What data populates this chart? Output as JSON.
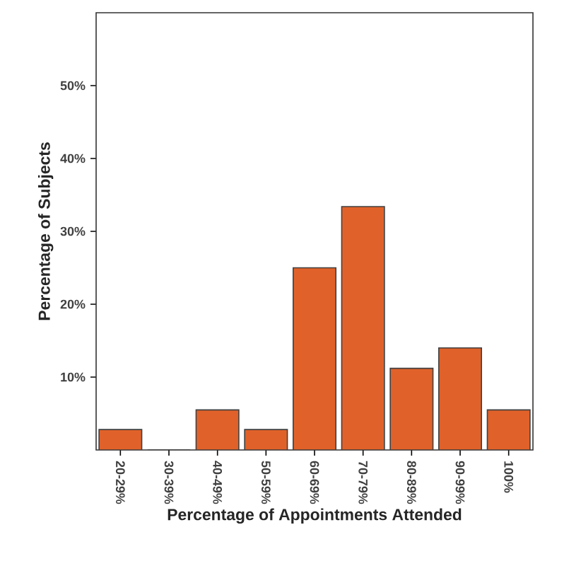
{
  "chart_data": {
    "type": "bar",
    "xlabel": "Percentage of Appointments Attended",
    "ylabel": "Percentage of Subjects",
    "categories": [
      "20-29%",
      "30-39%",
      "40-49%",
      "50-59%",
      "60-69%",
      "70-79%",
      "80-89%",
      "90-99%",
      "100%"
    ],
    "values": [
      2.8,
      0,
      5.5,
      2.8,
      25.0,
      33.4,
      11.2,
      14.0,
      5.5
    ],
    "color": "#e0622a",
    "ylim": [
      0,
      60
    ],
    "yticks": [
      {
        "value": 10,
        "label": "10%"
      },
      {
        "value": 20,
        "label": "20%"
      },
      {
        "value": 30,
        "label": "30%"
      },
      {
        "value": 40,
        "label": "40%"
      },
      {
        "value": 50,
        "label": "50%"
      }
    ],
    "grid": false
  }
}
